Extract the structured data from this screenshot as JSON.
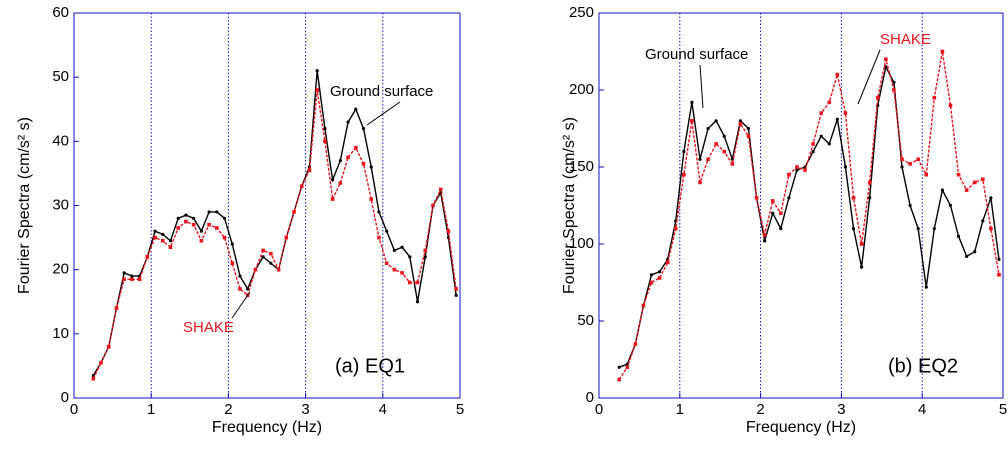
{
  "chart_data": [
    {
      "type": "line",
      "xlabel": "Frequency (Hz)",
      "ylabel": "Fourier Spectra (cm/s² s)",
      "annotation": "(a) EQ1",
      "xlim": [
        0,
        5
      ],
      "xticks": [
        0,
        1,
        2,
        3,
        4,
        5
      ],
      "ylim": [
        0,
        60
      ],
      "yticks": [
        0,
        10,
        20,
        30,
        40,
        50,
        60
      ],
      "grid": "x",
      "x": [
        0.25,
        0.35,
        0.45,
        0.55,
        0.65,
        0.75,
        0.85,
        0.95,
        1.05,
        1.15,
        1.25,
        1.35,
        1.45,
        1.55,
        1.65,
        1.75,
        1.85,
        1.95,
        2.05,
        2.15,
        2.25,
        2.35,
        2.45,
        2.55,
        2.65,
        2.75,
        2.85,
        2.95,
        3.05,
        3.15,
        3.25,
        3.35,
        3.45,
        3.55,
        3.65,
        3.75,
        3.85,
        3.95,
        4.05,
        4.15,
        4.25,
        4.35,
        4.45,
        4.55,
        4.65,
        4.75,
        4.85,
        4.95
      ],
      "series": [
        {
          "name": "Ground surface",
          "color": "#000000",
          "values": [
            3.5,
            5.5,
            8,
            14,
            19.5,
            19,
            19,
            22,
            26,
            25.5,
            24.5,
            28,
            28.5,
            28,
            26,
            29,
            29,
            28,
            24,
            19,
            17,
            20,
            22,
            21,
            20,
            25,
            29,
            33,
            36,
            51,
            42,
            34,
            37,
            43,
            45,
            42,
            36,
            29,
            26,
            23,
            23.5,
            22,
            15,
            22,
            30,
            32,
            25,
            16
          ]
        },
        {
          "name": "SHAKE",
          "color": "#e8141e",
          "values": [
            3,
            5.5,
            8,
            14,
            18.5,
            18.5,
            18.5,
            22,
            25,
            24.5,
            23.5,
            26.5,
            27.5,
            27,
            24.5,
            27,
            26.5,
            25,
            21,
            17,
            16,
            20,
            23,
            22.5,
            20,
            25,
            29,
            33,
            35.5,
            48,
            40,
            31,
            33.5,
            37.5,
            39,
            36.5,
            31,
            25,
            21,
            20,
            19.5,
            18,
            18,
            23,
            30,
            32.5,
            26,
            17
          ]
        }
      ]
    },
    {
      "type": "line",
      "xlabel": "Frequency (Hz)",
      "ylabel": "Fourier Spectra (cm/s² s)",
      "annotation": "(b) EQ2",
      "xlim": [
        0,
        5
      ],
      "xticks": [
        0,
        1,
        2,
        3,
        4,
        5
      ],
      "ylim": [
        0,
        250
      ],
      "yticks": [
        0,
        50,
        100,
        150,
        200,
        250
      ],
      "grid": "x",
      "x": [
        0.25,
        0.35,
        0.45,
        0.55,
        0.65,
        0.75,
        0.85,
        0.95,
        1.05,
        1.15,
        1.25,
        1.35,
        1.45,
        1.55,
        1.65,
        1.75,
        1.85,
        1.95,
        2.05,
        2.15,
        2.25,
        2.35,
        2.45,
        2.55,
        2.65,
        2.75,
        2.85,
        2.95,
        3.05,
        3.15,
        3.25,
        3.35,
        3.45,
        3.55,
        3.65,
        3.75,
        3.85,
        3.95,
        4.05,
        4.15,
        4.25,
        4.35,
        4.45,
        4.55,
        4.65,
        4.75,
        4.85,
        4.95
      ],
      "series": [
        {
          "name": "Ground surface",
          "color": "#000000",
          "values": [
            20,
            22,
            35,
            60,
            80,
            82,
            90,
            115,
            160,
            192,
            155,
            175,
            180,
            170,
            155,
            180,
            175,
            130,
            102,
            120,
            110,
            130,
            148,
            150,
            160,
            170,
            165,
            181,
            150,
            110,
            85,
            130,
            190,
            215,
            205,
            150,
            125,
            110,
            72,
            110,
            135,
            125,
            105,
            92,
            95,
            115,
            130,
            90
          ]
        },
        {
          "name": "SHAKE",
          "color": "#e8141e",
          "values": [
            12,
            20,
            35,
            60,
            75,
            78,
            88,
            110,
            145,
            180,
            140,
            155,
            165,
            160,
            152,
            178,
            170,
            130,
            106,
            128,
            120,
            145,
            150,
            148,
            165,
            185,
            192,
            210,
            185,
            130,
            100,
            140,
            195,
            220,
            200,
            155,
            152,
            155,
            145,
            195,
            225,
            190,
            145,
            135,
            140,
            142,
            110,
            80
          ]
        }
      ]
    }
  ]
}
